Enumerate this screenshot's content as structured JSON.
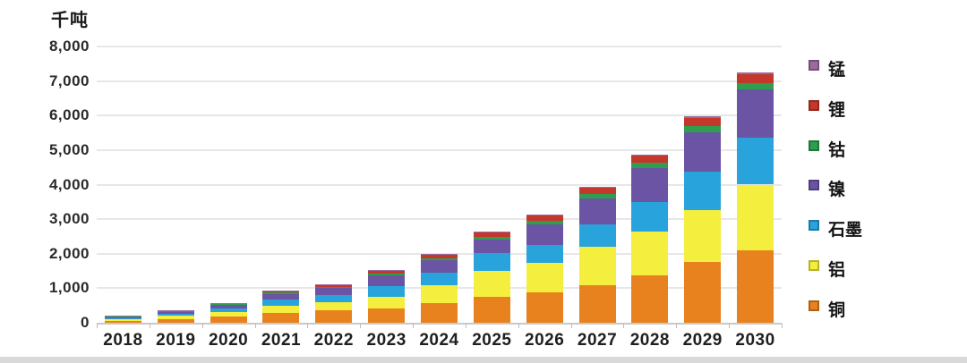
{
  "chart_data": {
    "type": "bar",
    "stacked": true,
    "title": "",
    "unit_label": "千吨",
    "xlabel": "",
    "ylabel": "千吨",
    "ylim": [
      0,
      8000
    ],
    "ytick_interval": 1000,
    "ytick_labels": [
      "0",
      "1,000",
      "2,000",
      "3,000",
      "4,000",
      "5,000",
      "6,000",
      "7,000",
      "8,000"
    ],
    "grid": true,
    "legend_position": "right",
    "categories": [
      "2018",
      "2019",
      "2020",
      "2021",
      "2022",
      "2023",
      "2024",
      "2025",
      "2026",
      "2027",
      "2028",
      "2029",
      "2030"
    ],
    "series": [
      {
        "name": "铜",
        "color": "#e8821e",
        "values": [
          60,
          110,
          180,
          290,
          350,
          420,
          570,
          750,
          880,
          1100,
          1380,
          1750,
          2100
        ]
      },
      {
        "name": "铝",
        "color": "#f4ef3e",
        "values": [
          40,
          85,
          130,
          200,
          250,
          330,
          520,
          750,
          850,
          1100,
          1250,
          1520,
          1900
        ]
      },
      {
        "name": "石墨",
        "color": "#29a3dc",
        "values": [
          40,
          70,
          110,
          180,
          200,
          300,
          370,
          520,
          520,
          650,
          860,
          1100,
          1350
        ]
      },
      {
        "name": "镍",
        "color": "#6b54a3",
        "values": [
          30,
          55,
          100,
          170,
          200,
          320,
          350,
          390,
          600,
          750,
          990,
          1150,
          1400
        ]
      },
      {
        "name": "钴",
        "color": "#2f9e4f",
        "values": [
          10,
          15,
          20,
          40,
          40,
          50,
          60,
          80,
          100,
          120,
          150,
          170,
          180
        ]
      },
      {
        "name": "锂",
        "color": "#c4372b",
        "values": [
          15,
          20,
          30,
          50,
          70,
          90,
          110,
          130,
          150,
          180,
          210,
          250,
          280
        ]
      },
      {
        "name": "锰",
        "color": "#9c6b9d",
        "values": [
          5,
          5,
          10,
          10,
          15,
          20,
          25,
          30,
          30,
          30,
          40,
          40,
          50
        ]
      }
    ],
    "legend_order": [
      "锰",
      "锂",
      "钴",
      "镍",
      "石墨",
      "铝",
      "铜"
    ]
  }
}
